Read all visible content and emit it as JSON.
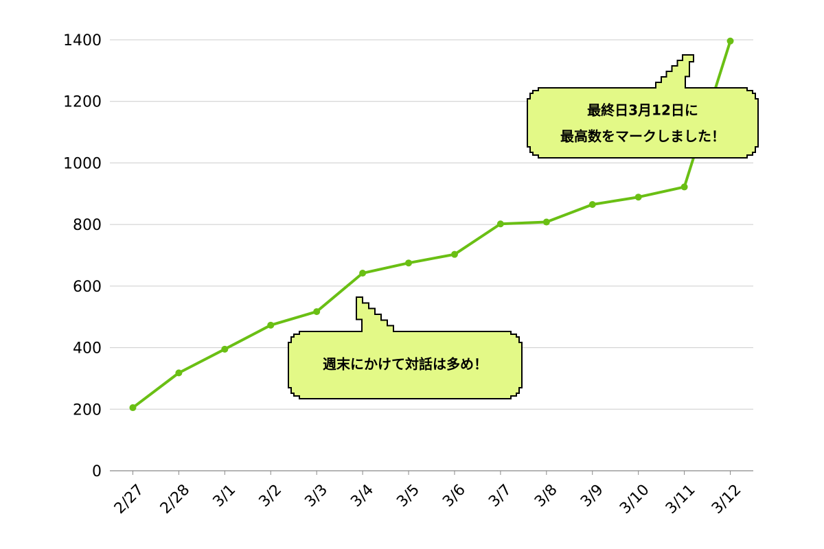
{
  "chart_data": {
    "type": "line",
    "title": "",
    "xlabel": "",
    "ylabel": "",
    "categories": [
      "2/27",
      "2/28",
      "3/1",
      "3/2",
      "3/3",
      "3/4",
      "3/5",
      "3/6",
      "3/7",
      "3/8",
      "3/9",
      "3/10",
      "3/11",
      "3/12"
    ],
    "series": [
      {
        "values": [
          205,
          318,
          395,
          473,
          517,
          642,
          675,
          703,
          802,
          808,
          865,
          889,
          922,
          1396
        ],
        "color": "#6abf14"
      }
    ],
    "yticks": [
      0,
      200,
      400,
      600,
      800,
      1000,
      1200,
      1400
    ],
    "ylim": [
      0,
      1400
    ],
    "grid": true,
    "line_color": "#6abf14",
    "bubble_fill": "#e3f987",
    "annotations": [
      {
        "lines": [
          "週末にかけて対話は多め！"
        ]
      },
      {
        "lines": [
          "最終日3月12日に",
          "最高数をマークしました！"
        ]
      }
    ]
  }
}
